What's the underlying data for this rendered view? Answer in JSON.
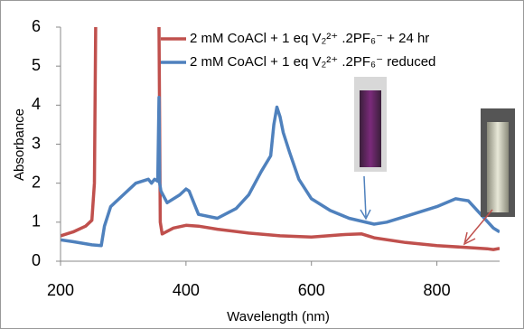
{
  "chart_data": {
    "type": "line",
    "x_label": "Wavelength (nm)",
    "y_label": "Absorbance",
    "xlim": [
      200,
      900
    ],
    "xticks": [
      200,
      400,
      600,
      800
    ],
    "ylim": [
      0,
      6
    ],
    "yticks": [
      0,
      1,
      2,
      3,
      4,
      5,
      6
    ],
    "legend": "top-right",
    "series": [
      {
        "name": "2 mM CoACl + 1 eq V₂²⁺ .2PF₆⁻ + 24 hr",
        "color": "#c0504d",
        "x": [
          200,
          220,
          240,
          250,
          254,
          256,
          300,
          357,
          359,
          362,
          380,
          400,
          420,
          450,
          500,
          550,
          600,
          650,
          680,
          700,
          750,
          800,
          850,
          880,
          890,
          900
        ],
        "values": [
          0.65,
          0.75,
          0.9,
          1.05,
          2,
          6,
          null,
          6,
          1,
          0.7,
          0.85,
          0.92,
          0.9,
          0.82,
          0.72,
          0.65,
          0.62,
          0.68,
          0.7,
          0.6,
          0.48,
          0.4,
          0.35,
          0.32,
          0.3,
          0.33
        ]
      },
      {
        "name": "2 mM CoACl + 1 eq V₂²⁺ .2PF₆⁻  reduced",
        "color": "#4f81bd",
        "x": [
          200,
          220,
          250,
          265,
          270,
          280,
          300,
          320,
          340,
          345,
          350,
          355,
          357,
          358,
          360,
          370,
          390,
          400,
          405,
          420,
          450,
          480,
          500,
          520,
          535,
          540,
          545,
          550,
          555,
          565,
          580,
          600,
          630,
          660,
          700,
          720,
          750,
          800,
          830,
          850,
          870,
          890,
          900
        ],
        "values": [
          0.55,
          0.5,
          0.42,
          0.4,
          0.9,
          1.4,
          1.7,
          2.0,
          2.1,
          2.0,
          2.1,
          2.05,
          4.2,
          2.0,
          1.8,
          1.5,
          1.7,
          1.85,
          1.8,
          1.2,
          1.1,
          1.35,
          1.7,
          2.3,
          2.7,
          3.5,
          3.95,
          3.7,
          3.3,
          2.8,
          2.1,
          1.6,
          1.3,
          1.1,
          0.95,
          1.0,
          1.15,
          1.4,
          1.6,
          1.55,
          1.2,
          0.85,
          0.75
        ]
      }
    ]
  }
}
